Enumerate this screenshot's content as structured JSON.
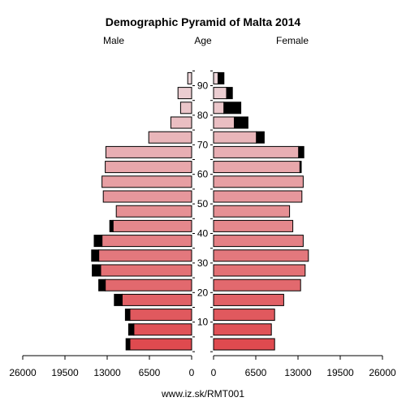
{
  "chart_data": {
    "type": "bar",
    "title": "Demographic Pyramid of Malta 2014",
    "header_left": "Male",
    "header_center": "Age",
    "header_right": "Female",
    "footer": "www.iz.sk/RMT001",
    "xlim": [
      0,
      26000
    ],
    "x_ticks_left": [
      "26000",
      "19500",
      "13000",
      "6500",
      "0"
    ],
    "x_ticks_right": [
      "0",
      "6500",
      "13000",
      "19500",
      "26000"
    ],
    "age_ticks": [
      "10",
      "20",
      "30",
      "40",
      "50",
      "60",
      "70",
      "80",
      "90"
    ],
    "age_groups": [
      "0-4",
      "5-9",
      "10-14",
      "15-19",
      "20-24",
      "25-29",
      "30-34",
      "35-39",
      "40-44",
      "45-49",
      "50-54",
      "55-59",
      "60-64",
      "65-69",
      "70-74",
      "75-79",
      "80-84",
      "85-89",
      "90+"
    ],
    "male": {
      "base": [
        9500,
        8900,
        9500,
        10700,
        13300,
        14000,
        14300,
        13800,
        12100,
        11600,
        13600,
        13800,
        13300,
        13200,
        6600,
        3200,
        1700,
        2100,
        600
      ],
      "excess": [
        600,
        800,
        700,
        1200,
        1000,
        1300,
        1100,
        1200,
        500,
        0,
        0,
        0,
        0,
        0,
        0,
        0,
        0,
        0,
        0
      ]
    },
    "female": {
      "base": [
        9400,
        8900,
        9400,
        10800,
        13400,
        14100,
        14600,
        13800,
        12200,
        11700,
        13600,
        13800,
        13300,
        13100,
        6600,
        3200,
        1600,
        2000,
        700
      ],
      "excess": [
        0,
        0,
        0,
        0,
        0,
        0,
        0,
        0,
        0,
        0,
        0,
        0,
        200,
        800,
        1200,
        2100,
        2600,
        900,
        900
      ]
    },
    "colors": {
      "young": "#df4a4f",
      "old": "#ecd5d9",
      "excess": "#000000",
      "axis": "#000000"
    }
  }
}
